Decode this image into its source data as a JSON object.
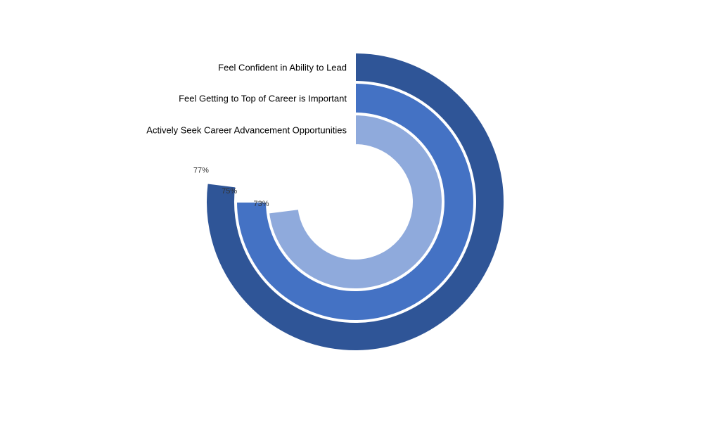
{
  "chart_data": {
    "type": "radial-bar",
    "title": "",
    "max_value": 100,
    "categories": [
      "Feel Confident in Ability to Lead",
      "Feel Getting to Top of Career is Important",
      "Actively Seek Career Advancement Opportunities"
    ],
    "values": [
      77,
      75,
      73
    ],
    "value_labels": [
      "77%",
      "75%",
      "73%"
    ],
    "colors": [
      "#2f5597",
      "#4472c4",
      "#8faadc"
    ],
    "legend": "none",
    "grid": false
  }
}
